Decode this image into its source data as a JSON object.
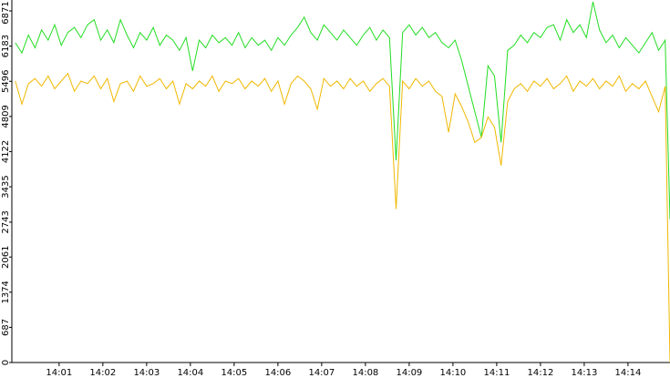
{
  "chart_data": {
    "type": "line",
    "x": [
      0,
      0.15,
      0.3,
      0.45,
      0.6,
      0.75,
      0.9,
      1.05,
      1.2,
      1.35,
      1.5,
      1.65,
      1.8,
      1.95,
      2.1,
      2.25,
      2.4,
      2.55,
      2.7,
      2.85,
      3.0,
      3.15,
      3.3,
      3.45,
      3.6,
      3.75,
      3.9,
      4.05,
      4.2,
      4.35,
      4.5,
      4.65,
      4.8,
      4.95,
      5.1,
      5.25,
      5.4,
      5.55,
      5.7,
      5.85,
      6.0,
      6.15,
      6.3,
      6.45,
      6.6,
      6.75,
      6.9,
      7.05,
      7.2,
      7.35,
      7.5,
      7.65,
      7.8,
      7.95,
      8.1,
      8.25,
      8.4,
      8.55,
      8.7,
      8.85,
      9.0,
      9.15,
      9.3,
      9.45,
      9.6,
      9.75,
      9.9,
      10.05,
      10.2,
      10.35,
      10.5,
      10.65,
      10.8,
      10.95,
      11.1,
      11.25,
      11.4,
      11.55,
      11.7,
      11.85,
      12.0,
      12.15,
      12.3,
      12.45,
      12.6,
      12.75,
      12.9,
      13.05,
      13.2,
      13.35,
      13.5,
      13.65,
      13.8,
      13.95,
      14.1,
      14.25,
      14.4,
      14.55,
      14.7,
      14.85,
      14.96
    ],
    "series": [
      {
        "color": "#22dd22",
        "values": [
          6250,
          6050,
          6400,
          6150,
          6500,
          6300,
          6600,
          6200,
          6450,
          6550,
          6350,
          6600,
          6700,
          6300,
          6500,
          6250,
          6700,
          6400,
          6150,
          6450,
          6300,
          6550,
          6200,
          6400,
          6300,
          6100,
          6350,
          5700,
          6300,
          6150,
          6400,
          6250,
          6350,
          6200,
          6450,
          6150,
          6350,
          6200,
          6300,
          6100,
          6350,
          6200,
          6400,
          6550,
          6750,
          6450,
          6300,
          6600,
          6450,
          6300,
          6500,
          6350,
          6200,
          6400,
          6550,
          6300,
          6500,
          6350,
          3950,
          6450,
          6600,
          6400,
          6550,
          6350,
          6450,
          6250,
          6150,
          6300,
          5900,
          5400,
          4900,
          4400,
          5800,
          5600,
          4300,
          6100,
          6200,
          6400,
          6250,
          6450,
          6350,
          6550,
          6600,
          6300,
          6700,
          6450,
          6600,
          6350,
          7050,
          6500,
          6250,
          6400,
          6150,
          6350,
          6200,
          6050,
          6250,
          6450,
          6100,
          6300,
          2800
        ]
      },
      {
        "color": "#f0b800",
        "values": [
          5500,
          5050,
          5450,
          5550,
          5400,
          5600,
          5350,
          5500,
          5650,
          5300,
          5500,
          5450,
          5600,
          5350,
          5550,
          5100,
          5450,
          5500,
          5300,
          5600,
          5400,
          5450,
          5550,
          5350,
          5500,
          5050,
          5450,
          5350,
          5500,
          5400,
          5600,
          5300,
          5500,
          5450,
          5550,
          5350,
          5500,
          5400,
          5550,
          5300,
          5500,
          5050,
          5450,
          5600,
          5500,
          5350,
          4950,
          5550,
          5400,
          5500,
          5350,
          5550,
          5400,
          5500,
          5300,
          5450,
          5550,
          5400,
          3000,
          5500,
          5350,
          5550,
          5400,
          5500,
          5300,
          5200,
          4500,
          5250,
          5000,
          4700,
          4300,
          4400,
          4800,
          4600,
          3850,
          5100,
          5350,
          5450,
          5300,
          5500,
          5400,
          5550,
          5350,
          5450,
          5600,
          5300,
          5500,
          5400,
          5550,
          5350,
          5500,
          5400,
          5600,
          5300,
          5450,
          5350,
          5500,
          5200,
          4900,
          5400,
          0
        ]
      }
    ],
    "xlim": [
      -0.08,
      14.96
    ],
    "xticks": [
      {
        "value": 1,
        "label": "14:01"
      },
      {
        "value": 2,
        "label": "14:02"
      },
      {
        "value": 3,
        "label": "14:03"
      },
      {
        "value": 4,
        "label": "14:04"
      },
      {
        "value": 5,
        "label": "14:05"
      },
      {
        "value": 6,
        "label": "14:06"
      },
      {
        "value": 7,
        "label": "14:07"
      },
      {
        "value": 8,
        "label": "14:08"
      },
      {
        "value": 9,
        "label": "14:09"
      },
      {
        "value": 10,
        "label": "14:10"
      },
      {
        "value": 11,
        "label": "14:11"
      },
      {
        "value": 12,
        "label": "14:12"
      },
      {
        "value": 13,
        "label": "14:13"
      },
      {
        "value": 14,
        "label": "14:14"
      }
    ],
    "ylim": [
      0,
      7085
    ],
    "yticks": [
      0,
      687,
      1374,
      2061,
      2743,
      3435,
      4122,
      4809,
      5496,
      6183,
      6871
    ]
  }
}
